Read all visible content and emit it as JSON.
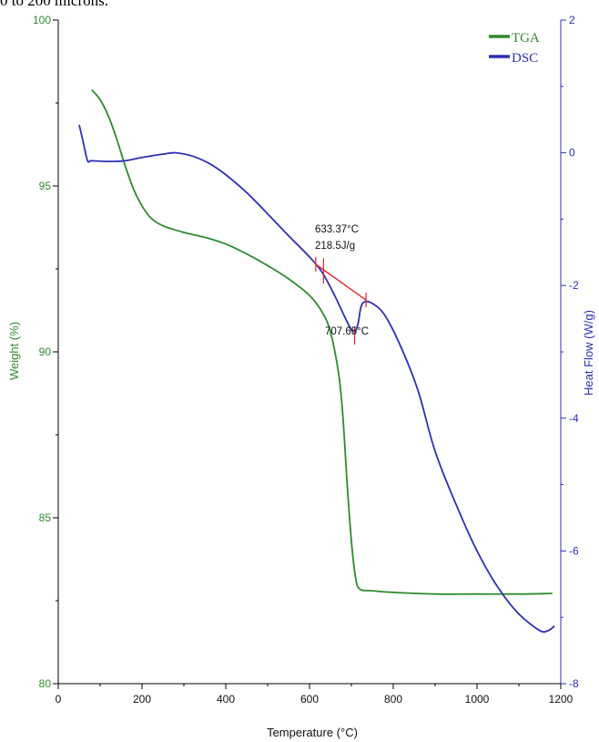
{
  "caption_fragment": "0 to 200 microns.",
  "colors": {
    "tga": "#2e8b2e",
    "dsc": "#2f2fb5",
    "marker": "#e0202a",
    "axis": "#000000",
    "left_axis_label": "#2e8b2e",
    "right_axis_label": "#2f2fb5"
  },
  "chart_data": {
    "type": "line",
    "title": "",
    "xlabel": "Temperature (°C)",
    "ylabel_left": "Weight (%)",
    "ylabel_right": "Heat Flow (W/g)",
    "xlim": [
      0,
      1200
    ],
    "ylim_left": [
      80,
      100
    ],
    "ylim_right": [
      -8,
      2
    ],
    "x_ticks": [
      "0",
      "200",
      "400",
      "600",
      "800",
      "1000",
      "1200"
    ],
    "y_left_ticks": [
      "80",
      "85",
      "90",
      "95",
      "100"
    ],
    "y_right_ticks": [
      "-8",
      "-6",
      "-4",
      "-2",
      "0",
      "2"
    ],
    "grid": false,
    "legend_position": "top-right",
    "series": [
      {
        "name": "TGA",
        "axis": "left",
        "points": [
          [
            80,
            97.9
          ],
          [
            100,
            97.6
          ],
          [
            120,
            97.1
          ],
          [
            140,
            96.4
          ],
          [
            160,
            95.6
          ],
          [
            180,
            94.9
          ],
          [
            200,
            94.4
          ],
          [
            220,
            94.05
          ],
          [
            250,
            93.8
          ],
          [
            300,
            93.6
          ],
          [
            350,
            93.45
          ],
          [
            400,
            93.25
          ],
          [
            450,
            92.95
          ],
          [
            500,
            92.6
          ],
          [
            550,
            92.2
          ],
          [
            600,
            91.7
          ],
          [
            630,
            91.2
          ],
          [
            650,
            90.6
          ],
          [
            670,
            89.3
          ],
          [
            680,
            88.0
          ],
          [
            690,
            86.0
          ],
          [
            700,
            84.3
          ],
          [
            710,
            83.2
          ],
          [
            720,
            82.85
          ],
          [
            750,
            82.8
          ],
          [
            800,
            82.75
          ],
          [
            900,
            82.7
          ],
          [
            1000,
            82.7
          ],
          [
            1100,
            82.7
          ],
          [
            1180,
            82.72
          ]
        ]
      },
      {
        "name": "DSC",
        "axis": "right",
        "points": [
          [
            50,
            0.42
          ],
          [
            60,
            0.15
          ],
          [
            70,
            -0.12
          ],
          [
            80,
            -0.12
          ],
          [
            120,
            -0.13
          ],
          [
            160,
            -0.12
          ],
          [
            200,
            -0.07
          ],
          [
            250,
            -0.02
          ],
          [
            280,
            0.0
          ],
          [
            320,
            -0.05
          ],
          [
            360,
            -0.16
          ],
          [
            400,
            -0.33
          ],
          [
            450,
            -0.6
          ],
          [
            500,
            -0.92
          ],
          [
            550,
            -1.25
          ],
          [
            600,
            -1.57
          ],
          [
            630,
            -1.8
          ],
          [
            660,
            -2.15
          ],
          [
            690,
            -2.55
          ],
          [
            705,
            -2.7
          ],
          [
            715,
            -2.6
          ],
          [
            722,
            -2.35
          ],
          [
            730,
            -2.25
          ],
          [
            750,
            -2.27
          ],
          [
            780,
            -2.45
          ],
          [
            820,
            -2.95
          ],
          [
            860,
            -3.6
          ],
          [
            900,
            -4.5
          ],
          [
            950,
            -5.3
          ],
          [
            1000,
            -6.0
          ],
          [
            1050,
            -6.55
          ],
          [
            1100,
            -6.95
          ],
          [
            1150,
            -7.2
          ],
          [
            1170,
            -7.2
          ],
          [
            1185,
            -7.13
          ]
        ]
      }
    ],
    "annotations": {
      "onset_temp_label": "633.37°C",
      "enthalpy_label": "218.5J/g",
      "peak_temp_label": "707.65°C",
      "tangent_start": [
        615,
        -1.68
      ],
      "tangent_end": [
        735,
        -2.22
      ],
      "onset_point": [
        633.37,
        -1.78
      ],
      "peak_point": [
        707.65,
        -2.7
      ]
    }
  }
}
